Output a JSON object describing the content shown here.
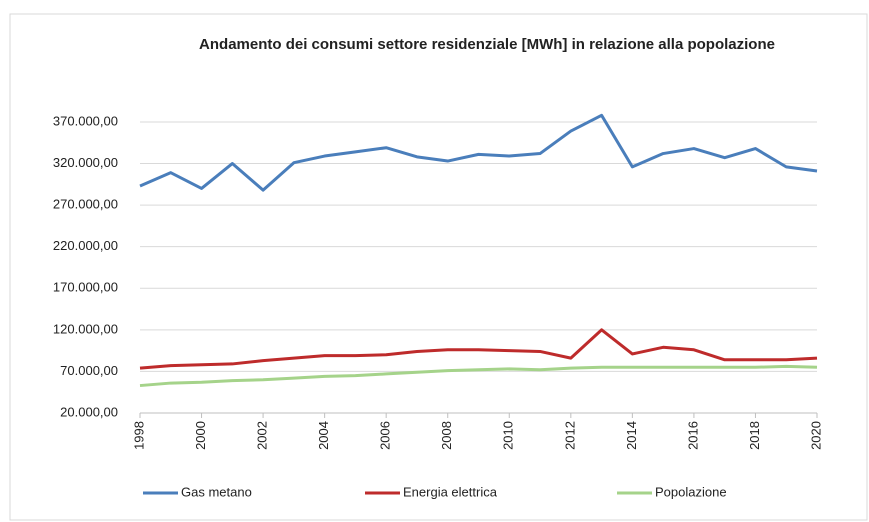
{
  "chart_data": {
    "type": "line",
    "title": "Andamento dei consumi settore residenziale [MWh] in relazione alla popolazione",
    "x": [
      1998,
      1999,
      2000,
      2001,
      2002,
      2003,
      2004,
      2005,
      2006,
      2007,
      2008,
      2009,
      2010,
      2011,
      2012,
      2013,
      2014,
      2015,
      2016,
      2017,
      2018,
      2019,
      2020
    ],
    "xlim": [
      1998,
      2020
    ],
    "xticks": [
      1998,
      2000,
      2002,
      2004,
      2006,
      2008,
      2010,
      2012,
      2014,
      2016,
      2018,
      2020
    ],
    "ylim": [
      20000,
      400000
    ],
    "yticks": [
      {
        "value": 20000,
        "label": "20.000,00"
      },
      {
        "value": 70000,
        "label": "70.000,00"
      },
      {
        "value": 120000,
        "label": "120.000,00"
      },
      {
        "value": 170000,
        "label": "170.000,00"
      },
      {
        "value": 220000,
        "label": "220.000,00"
      },
      {
        "value": 270000,
        "label": "270.000,00"
      },
      {
        "value": 320000,
        "label": "320.000,00"
      },
      {
        "value": 370000,
        "label": "370.000,00"
      }
    ],
    "grid": true,
    "legend": "bottom",
    "series": [
      {
        "name": "Gas metano",
        "color": "#4a7ebb",
        "values": [
          293000,
          309000,
          290000,
          320000,
          288000,
          321000,
          329000,
          334000,
          339000,
          328000,
          323000,
          331000,
          329000,
          332000,
          359000,
          378000,
          316000,
          332000,
          338000,
          327000,
          338000,
          316000,
          311000
        ]
      },
      {
        "name": "Energia elettrica",
        "color": "#be2b2b",
        "values": [
          74000,
          77000,
          78000,
          79000,
          83000,
          86000,
          89000,
          89000,
          90000,
          94000,
          96000,
          96000,
          95000,
          94000,
          86000,
          120000,
          91000,
          99000,
          96000,
          84000,
          84000,
          84000,
          86000
        ]
      },
      {
        "name": "Popolazione",
        "color": "#a5d38a",
        "values": [
          53000,
          56000,
          57000,
          59000,
          60000,
          62000,
          64000,
          65000,
          67000,
          69000,
          71000,
          72000,
          73000,
          72000,
          74000,
          75000,
          75000,
          75000,
          75000,
          75000,
          75000,
          76000,
          75000
        ]
      }
    ]
  }
}
